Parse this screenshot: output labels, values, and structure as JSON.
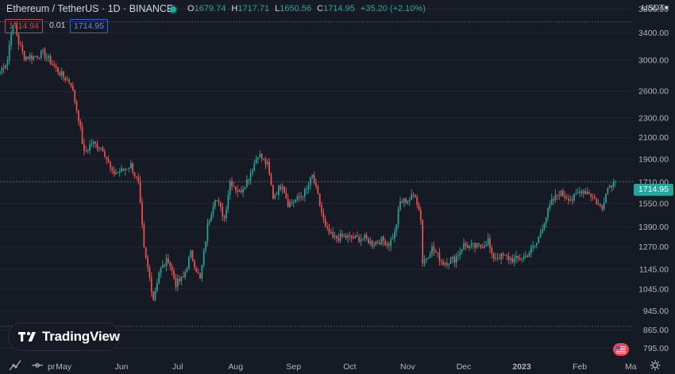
{
  "header": {
    "symbol_title": "Ethereum / TetherUS · 1D · BINANCE",
    "ohlc": {
      "o_label": "O",
      "o": "1679.74",
      "h_label": "H",
      "h": "1717.71",
      "l_label": "L",
      "l": "1650.56",
      "c_label": "C",
      "c": "1714.95",
      "change": "+35.20 (+2.10%)"
    },
    "bid": "1714.94",
    "spread": "0.01",
    "ask": "1714.95",
    "currency": "USDT▾"
  },
  "price_axis": {
    "ticks": [
      "3800.00",
      "3400.00",
      "3000.00",
      "2600.00",
      "2300.00",
      "2100.00",
      "1900.00",
      "1710.00",
      "1550.00",
      "1390.00",
      "1270.00",
      "1145.00",
      "1045.00",
      "945.00",
      "865.00",
      "795.00"
    ],
    "current_label": "1714.95"
  },
  "time_axis": {
    "labels": [
      "pr",
      "May",
      "Jun",
      "Jul",
      "Aug",
      "Sep",
      "Oct",
      "Nov",
      "Dec",
      "2023",
      "Feb",
      "Ma"
    ]
  },
  "branding": {
    "logo_text": "TradingView"
  },
  "colors": {
    "up": "#26a69a",
    "down": "#ef5350",
    "background": "#161a25",
    "grid": "#232733"
  },
  "chart_data": {
    "type": "candlestick",
    "scale": "log",
    "ylim": [
      760,
      3960
    ],
    "x_range": [
      "2022-03-28",
      "2023-03-01"
    ],
    "x_labels": [
      "pr",
      "May",
      "Jun",
      "Jul",
      "Aug",
      "Sep",
      "Oct",
      "Nov",
      "Dec",
      "2023",
      "Feb",
      "Ma"
    ],
    "last_price": 1714.95,
    "highlight_levels": [
      3580,
      880
    ],
    "anchors": [
      [
        "2022-03-28",
        2850
      ],
      [
        "2022-04-01",
        3000
      ],
      [
        "2022-04-03",
        3450
      ],
      [
        "2022-04-05",
        3520
      ],
      [
        "2022-04-07",
        3250
      ],
      [
        "2022-04-10",
        3050
      ],
      [
        "2022-04-15",
        3050
      ],
      [
        "2022-04-20",
        3100
      ],
      [
        "2022-04-25",
        2950
      ],
      [
        "2022-04-30",
        2800
      ],
      [
        "2022-05-05",
        2700
      ],
      [
        "2022-05-09",
        2300
      ],
      [
        "2022-05-12",
        1950
      ],
      [
        "2022-05-16",
        2050
      ],
      [
        "2022-05-22",
        2000
      ],
      [
        "2022-05-27",
        1780
      ],
      [
        "2022-06-01",
        1800
      ],
      [
        "2022-06-06",
        1850
      ],
      [
        "2022-06-10",
        1700
      ],
      [
        "2022-06-13",
        1250
      ],
      [
        "2022-06-16",
        1100
      ],
      [
        "2022-06-18",
        1000
      ],
      [
        "2022-06-21",
        1130
      ],
      [
        "2022-06-26",
        1200
      ],
      [
        "2022-06-30",
        1070
      ],
      [
        "2022-07-04",
        1100
      ],
      [
        "2022-07-08",
        1230
      ],
      [
        "2022-07-13",
        1090
      ],
      [
        "2022-07-17",
        1400
      ],
      [
        "2022-07-21",
        1600
      ],
      [
        "2022-07-26",
        1450
      ],
      [
        "2022-07-29",
        1720
      ],
      [
        "2022-08-03",
        1630
      ],
      [
        "2022-08-08",
        1750
      ],
      [
        "2022-08-13",
        1950
      ],
      [
        "2022-08-18",
        1850
      ],
      [
        "2022-08-21",
        1600
      ],
      [
        "2022-08-26",
        1700
      ],
      [
        "2022-08-29",
        1550
      ],
      [
        "2022-09-03",
        1580
      ],
      [
        "2022-09-08",
        1650
      ],
      [
        "2022-09-11",
        1760
      ],
      [
        "2022-09-14",
        1600
      ],
      [
        "2022-09-18",
        1380
      ],
      [
        "2022-09-22",
        1320
      ],
      [
        "2022-09-28",
        1330
      ],
      [
        "2022-10-04",
        1320
      ],
      [
        "2022-10-09",
        1320
      ],
      [
        "2022-10-13",
        1290
      ],
      [
        "2022-10-18",
        1310
      ],
      [
        "2022-10-22",
        1290
      ],
      [
        "2022-10-25",
        1350
      ],
      [
        "2022-10-28",
        1560
      ],
      [
        "2022-11-02",
        1580
      ],
      [
        "2022-11-05",
        1620
      ],
      [
        "2022-11-08",
        1450
      ],
      [
        "2022-11-09",
        1180
      ],
      [
        "2022-11-14",
        1260
      ],
      [
        "2022-11-20",
        1180
      ],
      [
        "2022-11-26",
        1200
      ],
      [
        "2022-12-01",
        1280
      ],
      [
        "2022-12-05",
        1270
      ],
      [
        "2022-12-10",
        1270
      ],
      [
        "2022-12-14",
        1310
      ],
      [
        "2022-12-16",
        1210
      ],
      [
        "2022-12-22",
        1215
      ],
      [
        "2022-12-28",
        1195
      ],
      [
        "2023-01-03",
        1215
      ],
      [
        "2023-01-09",
        1290
      ],
      [
        "2023-01-13",
        1430
      ],
      [
        "2023-01-17",
        1560
      ],
      [
        "2023-01-21",
        1630
      ],
      [
        "2023-01-28",
        1580
      ],
      [
        "2023-02-02",
        1650
      ],
      [
        "2023-02-06",
        1630
      ],
      [
        "2023-02-09",
        1580
      ],
      [
        "2023-02-13",
        1510
      ],
      [
        "2023-02-15",
        1650
      ],
      [
        "2023-02-18",
        1700
      ],
      [
        "2023-02-20",
        1715
      ]
    ]
  }
}
